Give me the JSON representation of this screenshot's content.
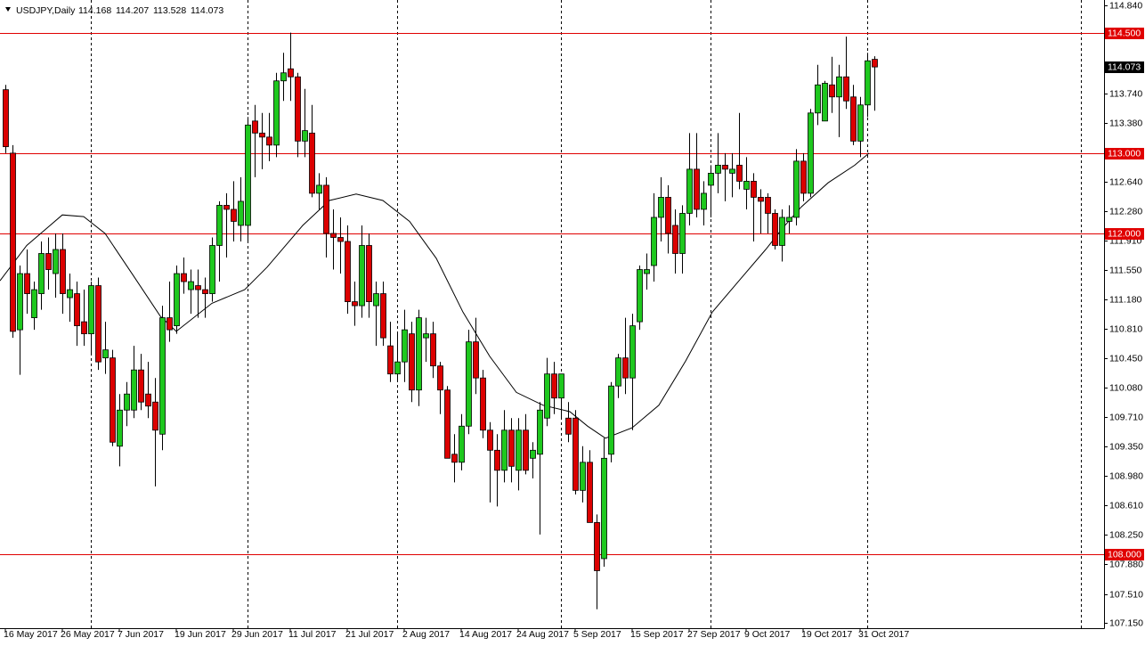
{
  "chart_data": {
    "type": "candlestick",
    "title": "USDJPY,Daily",
    "up_color": "#1ec81e",
    "down_color": "#dc0000",
    "level_color": "#e00000",
    "grid": true,
    "ylim": [
      107.084,
      114.907
    ],
    "yticks": [
      {
        "value": 114.84,
        "label": "114.840"
      },
      {
        "value": 113.74,
        "label": "113.740"
      },
      {
        "value": 113.38,
        "label": "113.380"
      },
      {
        "value": 112.64,
        "label": "112.640"
      },
      {
        "value": 112.28,
        "label": "112.280"
      },
      {
        "value": 111.91,
        "label": "111.910"
      },
      {
        "value": 111.55,
        "label": "111.550"
      },
      {
        "value": 111.18,
        "label": "111.180"
      },
      {
        "value": 110.81,
        "label": "110.810"
      },
      {
        "value": 110.45,
        "label": "110.450"
      },
      {
        "value": 110.08,
        "label": "110.080"
      },
      {
        "value": 109.71,
        "label": "109.710"
      },
      {
        "value": 109.35,
        "label": "109.350"
      },
      {
        "value": 108.98,
        "label": "108.980"
      },
      {
        "value": 108.61,
        "label": "108.610"
      },
      {
        "value": 108.25,
        "label": "108.250"
      },
      {
        "value": 107.88,
        "label": "107.880"
      },
      {
        "value": 107.51,
        "label": "107.510"
      },
      {
        "value": 107.15,
        "label": "107.150"
      }
    ],
    "xticks": [
      {
        "value": 0,
        "label": "16 May 2017"
      },
      {
        "value": 8,
        "label": "26 May 2017"
      },
      {
        "value": 16,
        "label": "7 Jun 2017"
      },
      {
        "value": 24,
        "label": "19 Jun 2017"
      },
      {
        "value": 32,
        "label": "29 Jun 2017"
      },
      {
        "value": 40,
        "label": "11 Jul 2017"
      },
      {
        "value": 48,
        "label": "21 Jul 2017"
      },
      {
        "value": 56,
        "label": "2 Aug 2017"
      },
      {
        "value": 64,
        "label": "14 Aug 2017"
      },
      {
        "value": 72,
        "label": "24 Aug 2017"
      },
      {
        "value": 80,
        "label": "5 Sep 2017"
      },
      {
        "value": 88,
        "label": "15 Sep 2017"
      },
      {
        "value": 96,
        "label": "27 Sep 2017"
      },
      {
        "value": 104,
        "label": "9 Oct 2017"
      },
      {
        "value": 112,
        "label": "19 Oct 2017"
      },
      {
        "value": 120,
        "label": "31 Oct 2017"
      }
    ],
    "xgrid": [
      12,
      34,
      55,
      78,
      99,
      121,
      151
    ],
    "levels": [
      {
        "value": 114.5,
        "label": "114.500"
      },
      {
        "value": 113,
        "label": "113.000"
      },
      {
        "value": 112,
        "label": "112.000"
      },
      {
        "value": 108,
        "label": "108.000"
      }
    ],
    "open": [
      113.79,
      113.0,
      110.8,
      111.5,
      110.95,
      111.25,
      111.75,
      111.5,
      111.8,
      111.2,
      111.25,
      110.9,
      110.75,
      111.35,
      110.45,
      110.45,
      109.35,
      109.8,
      109.8,
      110.3,
      110.0,
      109.9,
      109.5,
      110.95,
      110.85,
      111.5,
      111.3,
      111.35,
      111.3,
      111.25,
      111.85,
      112.35,
      112.3,
      112.1,
      112.1,
      113.4,
      113.25,
      113.2,
      113.1,
      113.9,
      114.05,
      113.95,
      113.15,
      113.25,
      112.5,
      112.6,
      112.0,
      111.95,
      111.9,
      111.15,
      111.1,
      111.85,
      111.1,
      111.25,
      110.6,
      110.25,
      110.4,
      110.75,
      110.05,
      110.7,
      110.75,
      110.35,
      110.05,
      109.25,
      109.15,
      109.6,
      110.65,
      110.2,
      109.55,
      109.3,
      109.05,
      109.55,
      109.05,
      109.55,
      109.2,
      109.25,
      109.7,
      110.25,
      109.95,
      109.7,
      109.7,
      108.8,
      109.15,
      108.4,
      107.95,
      109.25,
      110.1,
      110.45,
      110.2,
      110.9,
      111.5,
      111.6,
      112.2,
      112.45,
      112.1,
      111.75,
      112.25,
      112.8,
      112.3,
      112.6,
      112.75,
      112.85,
      112.75,
      112.85,
      112.55,
      112.65,
      112.45,
      112.45,
      112.25,
      111.85,
      112.15,
      112.2,
      112.9,
      112.5,
      113.5,
      113.4,
      113.85,
      113.7,
      113.95,
      113.7,
      113.15,
      113.6,
      114.168
    ],
    "high": [
      113.85,
      113.1,
      111.6,
      111.8,
      111.4,
      111.9,
      111.95,
      112.0,
      112.0,
      111.5,
      111.4,
      111.3,
      111.4,
      111.45,
      110.9,
      110.55,
      110.0,
      110.15,
      110.6,
      110.5,
      110.4,
      110.2,
      111.1,
      111.4,
      111.6,
      111.7,
      111.55,
      111.55,
      111.45,
      111.95,
      112.4,
      112.5,
      112.65,
      112.7,
      113.45,
      113.6,
      113.5,
      113.5,
      114.0,
      114.25,
      114.5,
      114.0,
      113.8,
      113.6,
      112.75,
      112.7,
      112.3,
      112.2,
      112.1,
      111.4,
      112.1,
      112.0,
      111.4,
      111.4,
      110.9,
      110.75,
      111.05,
      110.9,
      111.05,
      110.95,
      110.9,
      110.4,
      110.1,
      109.5,
      109.75,
      110.8,
      110.95,
      110.3,
      109.65,
      109.5,
      109.8,
      109.7,
      109.7,
      109.75,
      109.4,
      109.9,
      110.45,
      110.4,
      110.25,
      109.9,
      109.8,
      109.35,
      109.3,
      108.5,
      109.45,
      110.15,
      110.5,
      110.95,
      111.0,
      111.6,
      111.75,
      112.5,
      112.7,
      112.6,
      112.3,
      112.35,
      113.25,
      113.25,
      112.65,
      112.85,
      113.25,
      113.0,
      113.0,
      113.5,
      112.95,
      112.75,
      112.55,
      112.5,
      112.3,
      112.3,
      112.35,
      113.05,
      113.0,
      113.55,
      114.1,
      113.9,
      114.2,
      114.1,
      114.45,
      113.85,
      113.7,
      114.25,
      114.207
    ],
    "low": [
      113.0,
      110.7,
      110.24,
      111.0,
      110.8,
      111.05,
      111.3,
      111.2,
      111.0,
      110.9,
      110.6,
      110.6,
      110.5,
      110.3,
      110.25,
      109.35,
      109.1,
      109.6,
      109.7,
      109.8,
      109.7,
      108.85,
      109.3,
      110.65,
      110.75,
      111.25,
      111.0,
      110.95,
      110.95,
      111.15,
      111.4,
      111.7,
      111.9,
      111.9,
      111.9,
      112.7,
      112.8,
      112.9,
      112.95,
      113.65,
      113.65,
      112.95,
      112.95,
      112.45,
      112.3,
      111.7,
      111.55,
      111.5,
      111.0,
      110.85,
      110.95,
      110.95,
      110.6,
      110.6,
      110.15,
      110.15,
      110.15,
      109.9,
      109.85,
      110.4,
      110.2,
      109.75,
      109.2,
      108.9,
      109.05,
      109.5,
      110.0,
      109.45,
      108.65,
      108.6,
      108.9,
      108.9,
      108.8,
      109.0,
      108.95,
      108.25,
      109.6,
      109.75,
      109.7,
      109.4,
      108.75,
      108.65,
      108.4,
      107.32,
      107.85,
      109.15,
      109.95,
      110.0,
      109.55,
      110.8,
      111.3,
      111.4,
      111.9,
      111.75,
      111.5,
      111.5,
      112.1,
      112.2,
      112.1,
      112.2,
      112.5,
      112.4,
      112.45,
      112.55,
      112.3,
      111.9,
      112.0,
      112.0,
      111.8,
      111.65,
      112.0,
      112.1,
      112.4,
      112.45,
      113.35,
      113.4,
      113.5,
      113.2,
      113.55,
      113.1,
      112.95,
      113.45,
      113.528
    ],
    "close": [
      113.08,
      110.78,
      111.5,
      111.25,
      111.3,
      111.75,
      111.55,
      111.8,
      111.25,
      111.3,
      110.85,
      110.75,
      111.35,
      110.4,
      110.55,
      109.4,
      109.8,
      110.0,
      110.3,
      109.9,
      109.85,
      109.55,
      110.95,
      110.8,
      111.5,
      111.4,
      111.4,
      111.3,
      111.25,
      111.85,
      112.35,
      112.3,
      112.15,
      112.4,
      113.35,
      113.25,
      113.2,
      113.1,
      113.9,
      114.0,
      113.95,
      113.15,
      113.28,
      112.5,
      112.6,
      112.0,
      111.95,
      111.9,
      111.15,
      111.1,
      111.85,
      111.15,
      111.25,
      110.7,
      110.25,
      110.4,
      110.8,
      110.05,
      110.95,
      110.75,
      110.35,
      110.05,
      109.2,
      109.15,
      109.6,
      110.65,
      110.2,
      109.55,
      109.3,
      109.05,
      109.55,
      109.1,
      109.55,
      109.05,
      109.3,
      109.8,
      110.25,
      109.95,
      110.25,
      109.5,
      108.8,
      109.15,
      108.4,
      107.8,
      109.2,
      110.1,
      110.45,
      110.2,
      110.85,
      111.55,
      111.55,
      112.2,
      112.45,
      112.0,
      111.75,
      112.25,
      112.8,
      112.3,
      112.5,
      112.75,
      112.85,
      112.8,
      112.8,
      112.65,
      112.65,
      112.45,
      112.4,
      112.25,
      111.85,
      112.2,
      112.2,
      112.9,
      112.5,
      113.5,
      113.85,
      113.87,
      113.7,
      113.95,
      113.65,
      113.15,
      113.6,
      114.15,
      114.073
    ],
    "ma": {
      "x": [
        -0.75,
        3,
        8,
        11,
        14,
        18,
        21.75,
        24,
        29,
        33.6,
        36.75,
        41.75,
        45.5,
        49.25,
        53,
        56.75,
        60.5,
        64.25,
        68,
        71.75,
        75.5,
        79.25,
        81.75,
        84.25,
        88,
        91.75,
        95.5,
        99.25,
        103,
        106.75,
        109.25,
        111.75,
        115.5,
        119.25,
        121.25
      ],
      "values": [
        111.41,
        111.85,
        112.23,
        112.21,
        112.0,
        111.47,
        110.97,
        110.78,
        111.13,
        111.3,
        111.58,
        112.1,
        112.41,
        112.49,
        112.41,
        112.15,
        111.69,
        111.02,
        110.47,
        110.02,
        109.86,
        109.78,
        109.6,
        109.45,
        109.58,
        109.86,
        110.41,
        111.02,
        111.41,
        111.8,
        112.08,
        112.33,
        112.63,
        112.85,
        113.0
      ]
    }
  }
}
